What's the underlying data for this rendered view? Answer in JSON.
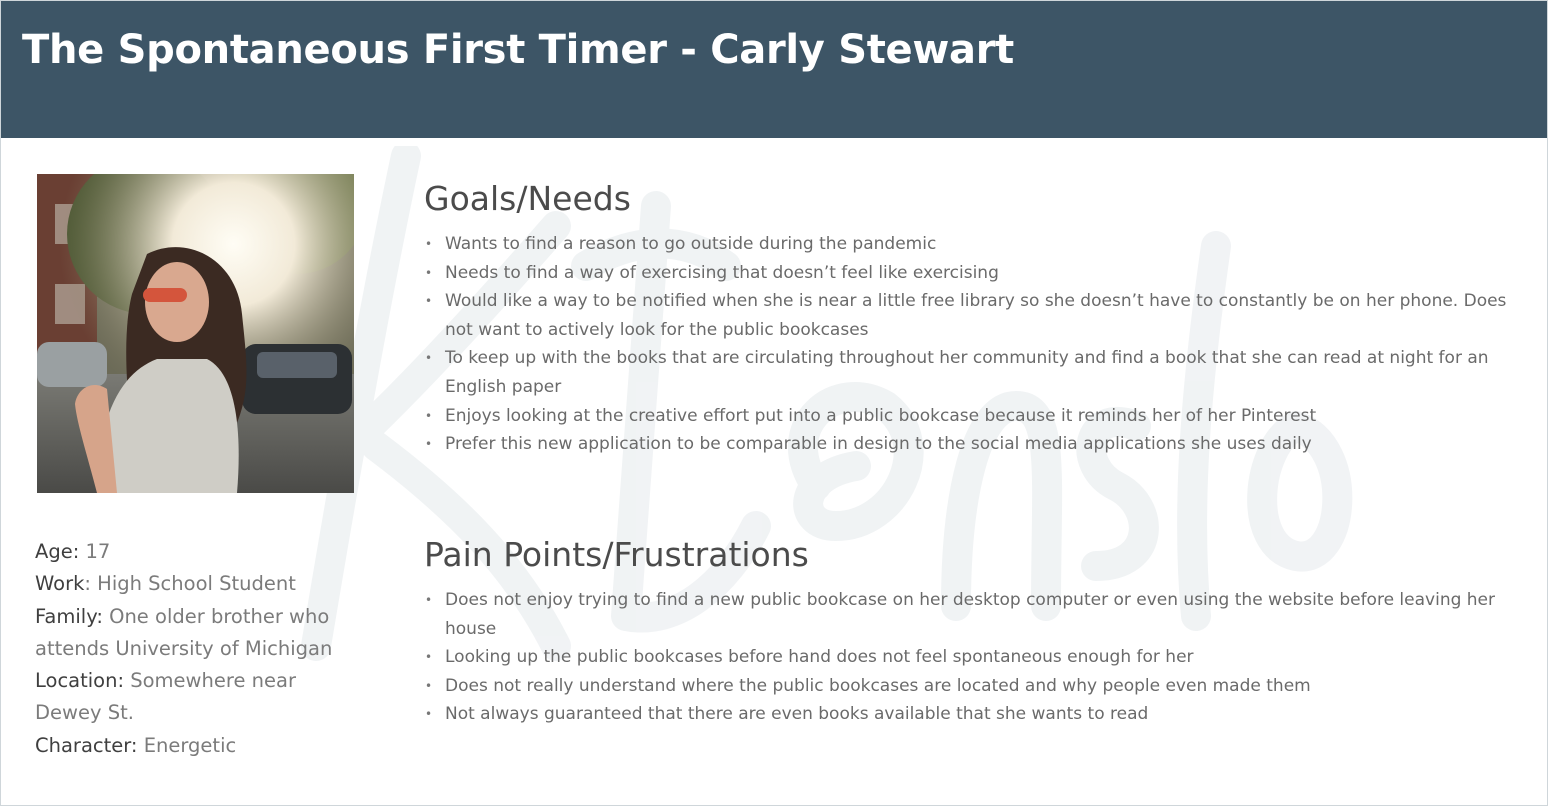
{
  "header": {
    "title": "The Spontaneous First Timer - Carly Stewart",
    "background_color": "#3d5566"
  },
  "profile": {
    "photo_icon": "persona-photo",
    "age_label": "Age:",
    "age_value": " 17",
    "work_label": "Work",
    "work_value": ": High School Student",
    "family_label": "Family:",
    "family_value": " One older brother who attends University of Michigan",
    "location_label": "Location:",
    "location_value": " Somewhere near Dewey St.",
    "character_label": "Character:",
    "character_value": " Energetic"
  },
  "goals": {
    "title": "Goals/Needs",
    "items": [
      "Wants to find a reason to go outside during the pandemic",
      "Needs to find a way of exercising that doesn’t feel like exercising",
      "Would like a way to be notified when she is near a little free library so she doesn’t have to constantly be on her phone. Does not want to actively look for the public bookcases",
      "To keep up with the books that are circulating throughout her community and find a book that she can read at night for an English paper",
      "Enjoys looking at the creative effort put into a public bookcase because it reminds her of her Pinterest",
      "Prefer this new application to be comparable in design to the social media applications she uses daily"
    ]
  },
  "pain_points": {
    "title": "Pain Points/Frustrations",
    "items": [
      "Does not enjoy trying to find a new public bookcase on her desktop computer or even using the website before leaving her house",
      "Looking up the public bookcases before hand does not feel spontaneous enough for her",
      "Does not really understand where the public bookcases are located and why people even made them",
      "Not always guaranteed that there are even books available that she wants to read"
    ]
  }
}
